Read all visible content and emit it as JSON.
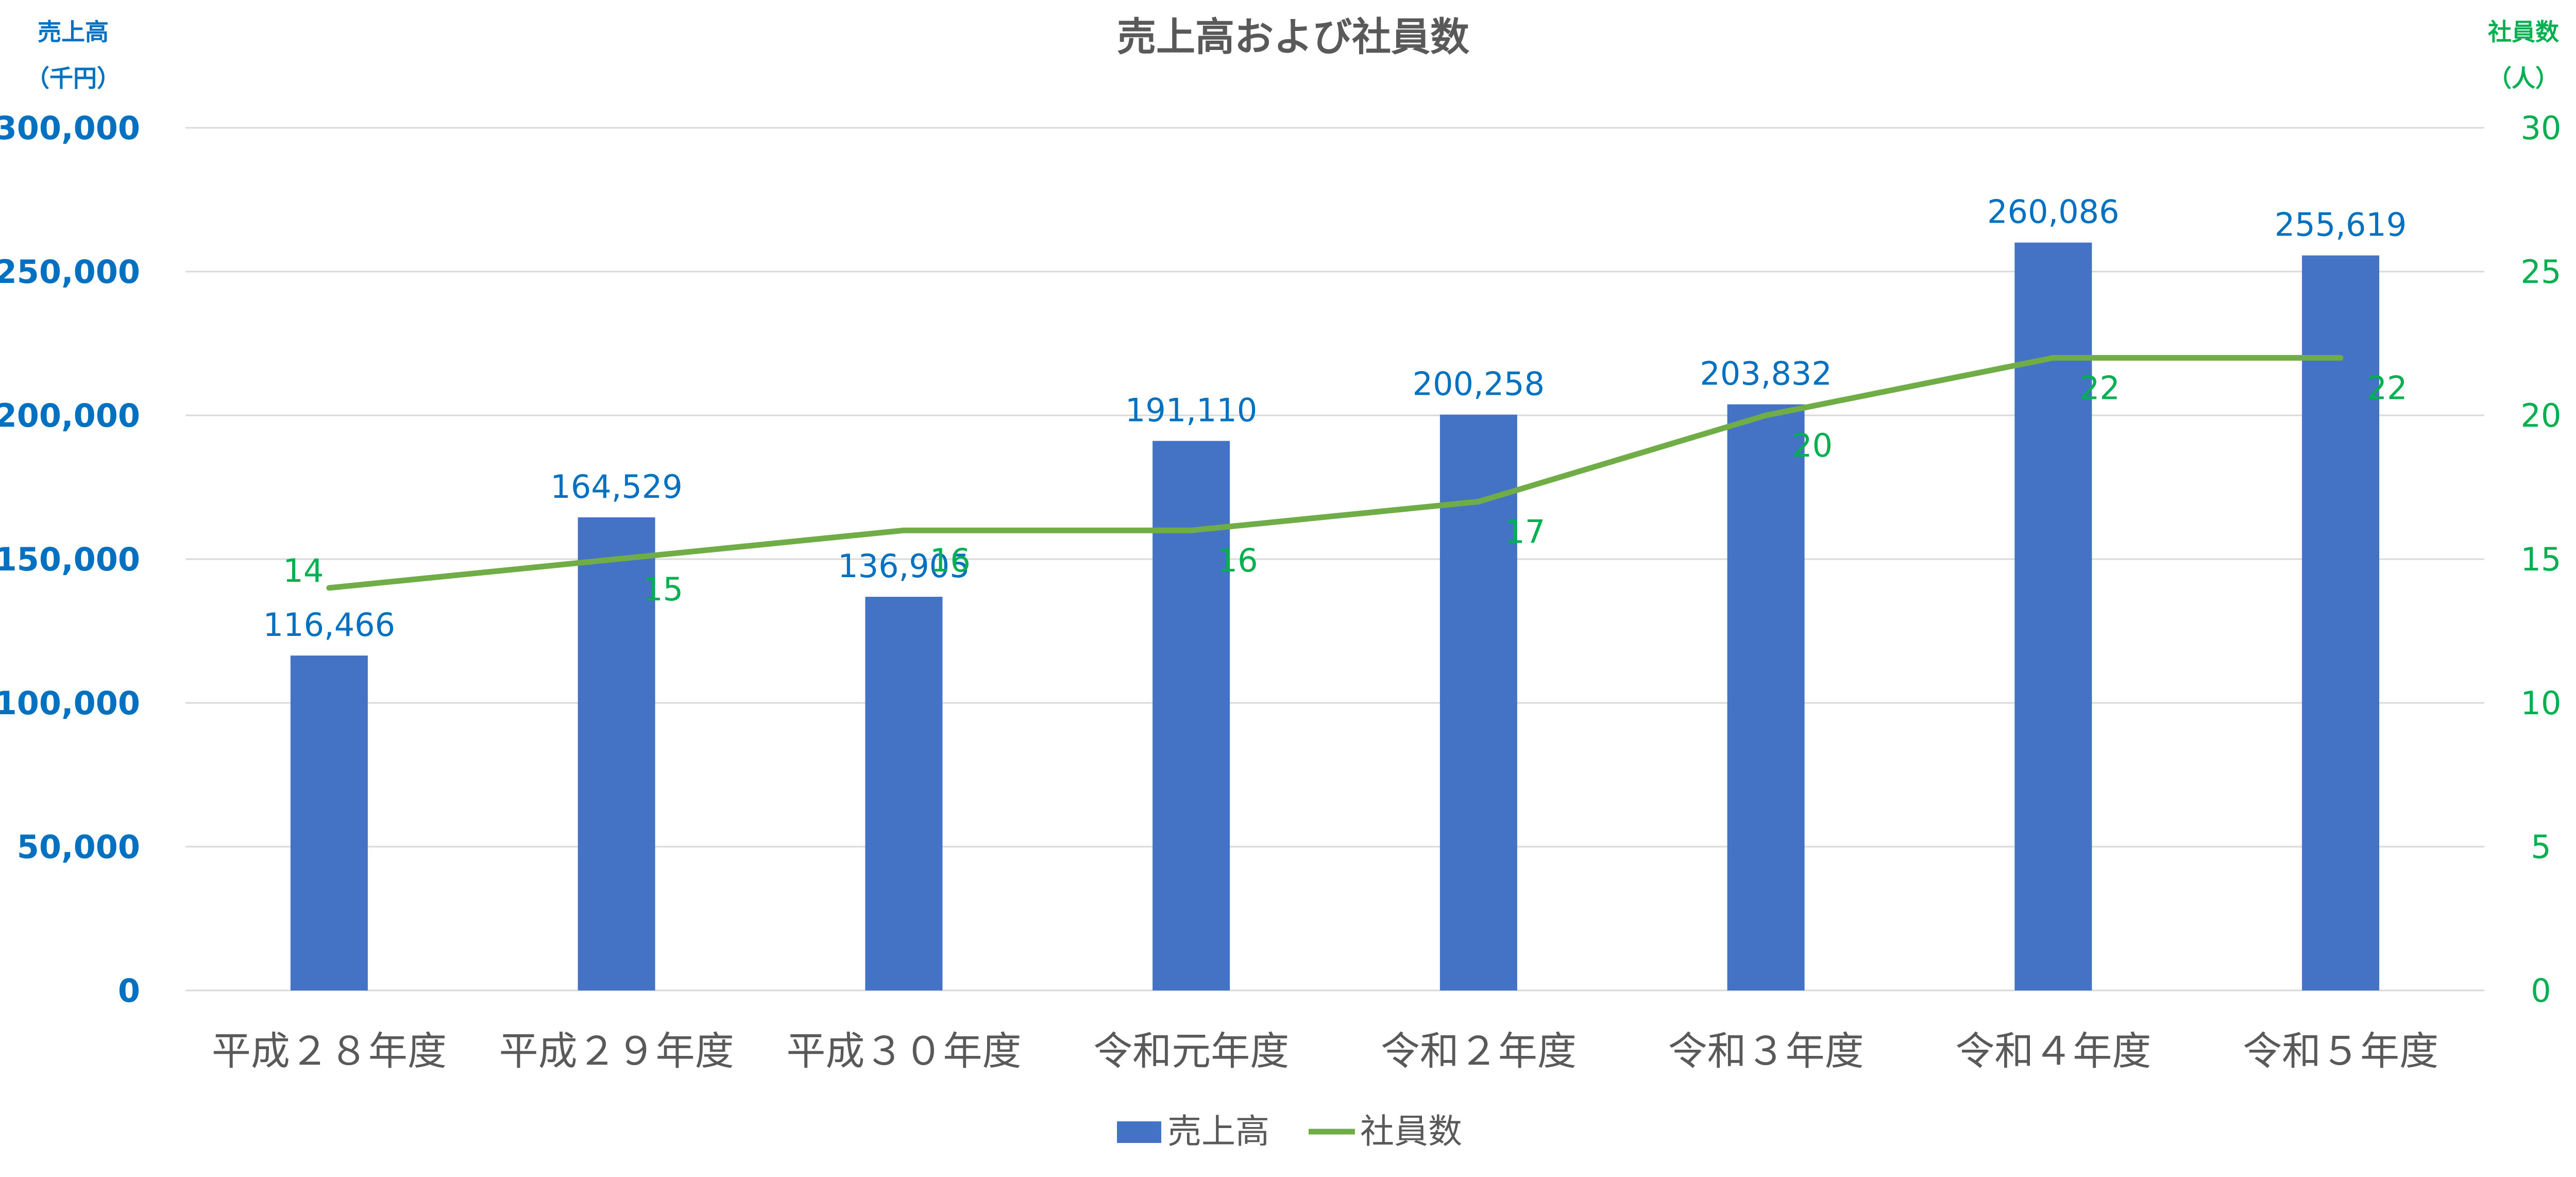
{
  "chart_data": {
    "type": "bar",
    "title": "売上高および社員数",
    "categories": [
      "平成２８年度",
      "平成２９年度",
      "平成３０年度",
      "令和元年度",
      "令和２年度",
      "令和３年度",
      "令和４年度",
      "令和５年度"
    ],
    "series": [
      {
        "name": "売上高",
        "type": "bar",
        "axis": "left",
        "values": [
          116466,
          164529,
          136905,
          191110,
          200258,
          203832,
          260086,
          255619
        ],
        "labels": [
          "116,466",
          "164,529",
          "136,905",
          "191,110",
          "200,258",
          "203,832",
          "260,086",
          "255,619"
        ],
        "color": "#4472C4"
      },
      {
        "name": "社員数",
        "type": "line",
        "axis": "right",
        "values": [
          14,
          15,
          16,
          16,
          17,
          20,
          22,
          22
        ],
        "labels": [
          "14",
          "15",
          "16",
          "16",
          "17",
          "20",
          "22",
          "22"
        ],
        "color": "#70AD47"
      }
    ],
    "y_left": {
      "label_line1": "売上高",
      "label_line2": "（千円）",
      "lim": [
        0,
        300000
      ],
      "ticks": [
        0,
        50000,
        100000,
        150000,
        200000,
        250000,
        300000
      ],
      "tick_labels": [
        "0",
        "50,000",
        "100,000",
        "150,000",
        "200,000",
        "250,000",
        "300,000"
      ],
      "color": "#0070C0"
    },
    "y_right": {
      "label_line1": "社員数",
      "label_line2": "（人）",
      "lim": [
        0,
        30
      ],
      "ticks": [
        0,
        5,
        10,
        15,
        20,
        25,
        30
      ],
      "tick_labels": [
        "0",
        "5",
        "10",
        "15",
        "20",
        "25",
        "30"
      ],
      "color": "#00B050"
    },
    "grid": true,
    "legend_position": "bottom-center"
  }
}
